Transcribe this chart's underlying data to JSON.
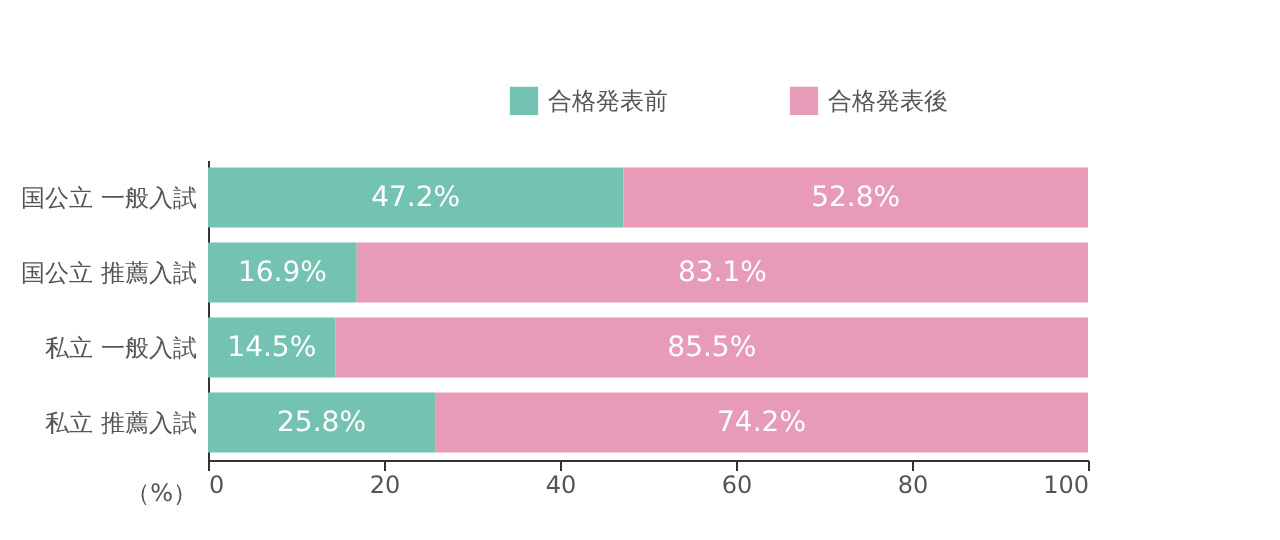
{
  "chart_data": {
    "type": "bar",
    "orientation": "horizontal",
    "stacked": true,
    "categories": [
      "国公立 一般入試",
      "国公立 推薦入試",
      "私立 一般入試",
      "私立 推薦入試"
    ],
    "series": [
      {
        "name": "合格発表前",
        "color": "#74c2b1",
        "values": [
          47.2,
          16.9,
          14.5,
          25.8
        ],
        "value_labels": [
          "47.2%",
          "16.9%",
          "14.5%",
          "25.8%"
        ]
      },
      {
        "name": "合格発表後",
        "color": "#e89ab9",
        "values": [
          52.8,
          83.1,
          85.5,
          74.2
        ],
        "value_labels": [
          "52.8%",
          "83.1%",
          "85.5%",
          "74.2%"
        ]
      }
    ],
    "xlabel": "（%）",
    "xlim": [
      0,
      100
    ],
    "xticks": [
      0,
      20,
      40,
      60,
      80,
      100
    ],
    "legend": "top right",
    "grid": false
  }
}
